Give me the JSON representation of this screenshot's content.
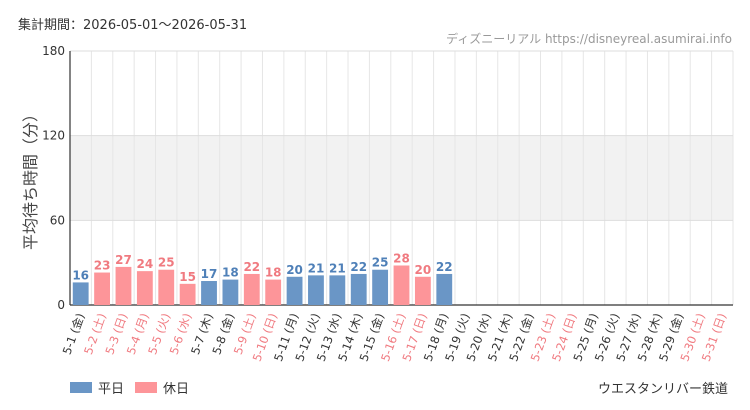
{
  "header": {
    "period": "集計期間：2026-05-01～2026-05-31",
    "source": "ディズニーリアル https://disneyreal.asumirai.info"
  },
  "footer": {
    "attraction": "ウエスタンリバー鉄道"
  },
  "legend": {
    "weekday_label": "平日",
    "holiday_label": "休日",
    "weekday_color": "#6a96c6",
    "holiday_color": "#fd9599"
  },
  "chart_data": {
    "type": "bar",
    "ylabel": "平均待ち時間（分）",
    "ylim": [
      0,
      180
    ],
    "yticks": [
      0,
      60,
      120,
      180
    ],
    "grid": true,
    "shaded_band": [
      60,
      120
    ],
    "legend_position": "bottom-left",
    "categories": [
      "5-1 (金)",
      "5-2 (土)",
      "5-3 (日)",
      "5-4 (月)",
      "5-5 (火)",
      "5-6 (水)",
      "5-7 (木)",
      "5-8 (金)",
      "5-9 (土)",
      "5-10 (日)",
      "5-11 (月)",
      "5-12 (火)",
      "5-13 (水)",
      "5-14 (木)",
      "5-15 (金)",
      "5-16 (土)",
      "5-17 (日)",
      "5-18 (月)",
      "5-19 (火)",
      "5-20 (水)",
      "5-21 (木)",
      "5-22 (金)",
      "5-23 (土)",
      "5-24 (日)",
      "5-25 (月)",
      "5-26 (火)",
      "5-27 (水)",
      "5-28 (木)",
      "5-29 (金)",
      "5-30 (土)",
      "5-31 (日)"
    ],
    "day_type": [
      "weekday",
      "holiday",
      "holiday",
      "holiday",
      "holiday",
      "holiday",
      "weekday",
      "weekday",
      "holiday",
      "holiday",
      "weekday",
      "weekday",
      "weekday",
      "weekday",
      "weekday",
      "holiday",
      "holiday",
      "weekday",
      "weekday",
      "weekday",
      "weekday",
      "weekday",
      "holiday",
      "holiday",
      "weekday",
      "weekday",
      "weekday",
      "weekday",
      "weekday",
      "holiday",
      "holiday"
    ],
    "values": [
      16,
      23,
      27,
      24,
      25,
      15,
      17,
      18,
      22,
      18,
      20,
      21,
      21,
      22,
      25,
      28,
      20,
      22,
      null,
      null,
      null,
      null,
      null,
      null,
      null,
      null,
      null,
      null,
      null,
      null,
      null
    ]
  }
}
